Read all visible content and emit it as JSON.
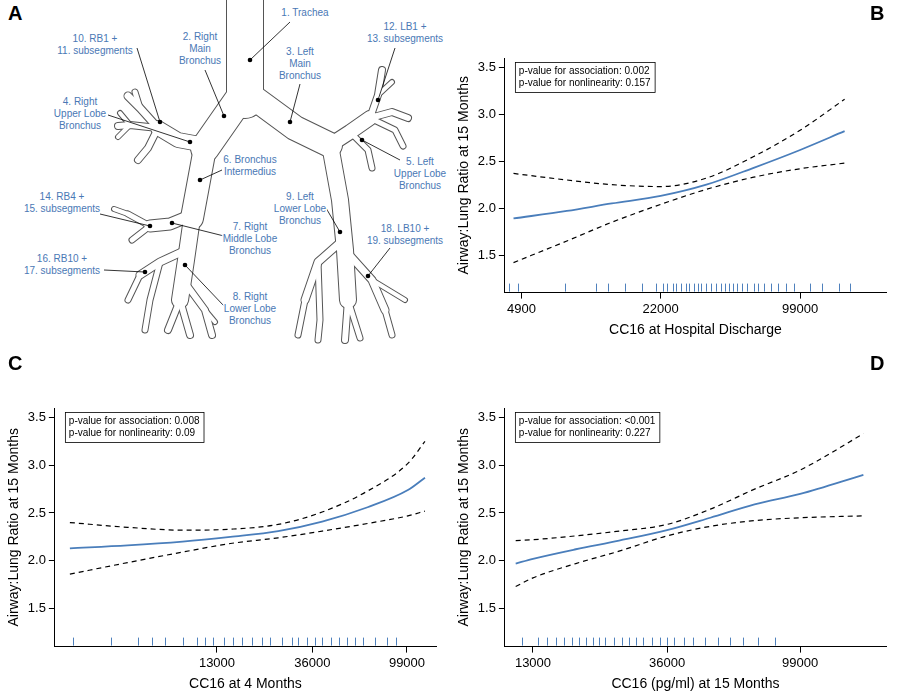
{
  "diagram": {
    "panel": "A",
    "labels": [
      "1. Trachea",
      "2. Right Main Bronchus",
      "3. Left Main Bronchus",
      "4. Right Upper Lobe Bronchus",
      "5. Left Upper Lobe Bronchus",
      "6. Bronchus Intermedius",
      "7. Right Middle Lobe Bronchus",
      "8. Right Lower Lobe Bronchus",
      "9. Left Lower Lobe Bronchus",
      "10. RB1 + 11. subsegments",
      "12. LB1 + 13. subsegments",
      "14. RB4 + 15. subsegments",
      "16. RB10 + 17. subsegments",
      "18. LB10 + 19. subsegments"
    ]
  },
  "chart_data": [
    {
      "type": "line",
      "panel": "B",
      "xlabel": "CC16 at Hospital Discharge",
      "ylabel": "Airway:Lung Ratio at 15 Months",
      "annotations": [
        "p-value for association: 0.002",
        "p-value for nonlinearity: 0.157"
      ],
      "log": "x",
      "grid": false,
      "xlim": [
        4100,
        250000
      ],
      "xticks": [
        4900,
        22000,
        99000
      ],
      "ylim": [
        1.1,
        3.6
      ],
      "yticks": [
        1.5,
        {
          "value": 2,
          "label": "2.0"
        },
        2.5,
        {
          "value": 3,
          "label": "3.0"
        },
        3.5
      ],
      "x": [
        4500,
        8000,
        13000,
        22000,
        36000,
        60000,
        99000,
        160000
      ],
      "series": [
        {
          "color": "#4a7ebb",
          "line_style": "solid",
          "values": [
            1.89,
            1.97,
            2.05,
            2.13,
            2.25,
            2.43,
            2.62,
            2.82
          ]
        },
        {
          "color": "#000000",
          "line_style": "dashed",
          "values": [
            1.42,
            1.65,
            1.85,
            2.04,
            2.2,
            2.33,
            2.42,
            2.48
          ]
        },
        {
          "color": "#000000",
          "line_style": "dashed",
          "values": [
            2.37,
            2.3,
            2.25,
            2.23,
            2.32,
            2.55,
            2.83,
            3.16
          ]
        },
        {
          "type": "rug",
          "color": "#4f81bd",
          "x": [
            4300,
            4700,
            7800,
            11000,
            12500,
            15000,
            18000,
            21000,
            22500,
            23500,
            25000,
            26000,
            27500,
            29000,
            30000,
            31500,
            33000,
            34000,
            36000,
            38000,
            40000,
            42000,
            44000,
            46000,
            48000,
            50000,
            53000,
            56000,
            60000,
            63000,
            67000,
            72000,
            78000,
            85000,
            93000,
            110000,
            125000,
            150000,
            170000
          ]
        }
      ]
    },
    {
      "type": "line",
      "panel": "C",
      "xlabel": "CC16 at 4 Months",
      "ylabel": "Airway:Lung Ratio at 15 Months",
      "annotations": [
        "p-value for association: 0.008",
        "p-value for nonlinearity: 0.09"
      ],
      "log": "x",
      "grid": false,
      "xlim": [
        2300,
        135000
      ],
      "xticks": [
        13000,
        36000,
        99000
      ],
      "ylim": [
        1.1,
        3.6
      ],
      "yticks": [
        1.5,
        {
          "value": 2,
          "label": "2.0"
        },
        2.5,
        {
          "value": 3,
          "label": "3.0"
        },
        3.5
      ],
      "x": [
        2700,
        5000,
        9000,
        15000,
        25000,
        40000,
        65000,
        100000,
        120000
      ],
      "series": [
        {
          "color": "#4a7ebb",
          "line_style": "solid",
          "values": [
            2.13,
            2.16,
            2.2,
            2.25,
            2.31,
            2.41,
            2.56,
            2.74,
            2.87
          ]
        },
        {
          "color": "#000000",
          "line_style": "dashed",
          "values": [
            1.86,
            1.98,
            2.09,
            2.18,
            2.24,
            2.31,
            2.39,
            2.47,
            2.52
          ]
        },
        {
          "color": "#000000",
          "line_style": "dashed",
          "values": [
            2.4,
            2.35,
            2.32,
            2.33,
            2.38,
            2.51,
            2.73,
            3.02,
            3.25
          ]
        },
        {
          "type": "rug",
          "color": "#4f81bd",
          "x": [
            2800,
            4200,
            5600,
            6500,
            7500,
            9000,
            10500,
            11500,
            12500,
            14000,
            15500,
            17000,
            19000,
            21000,
            23000,
            26000,
            29000,
            31000,
            34000,
            37000,
            40000,
            44000,
            48000,
            52000,
            57000,
            62000,
            70000,
            80000,
            88000
          ]
        }
      ]
    },
    {
      "type": "line",
      "panel": "D",
      "xlabel": "CC16 (pg/ml) at 15 Months",
      "ylabel": "Airway:Lung Ratio at 15 Months",
      "annotations": [
        "p-value for association: <0.001",
        "p-value for nonlinearity: 0.227"
      ],
      "log": "x",
      "grid": false,
      "xlim": [
        10500,
        190000
      ],
      "xticks": [
        13000,
        36000,
        99000
      ],
      "ylim": [
        1.1,
        3.6
      ],
      "yticks": [
        1.5,
        {
          "value": 2,
          "label": "2.0"
        },
        2.5,
        {
          "value": 3,
          "label": "3.0"
        },
        3.5
      ],
      "x": [
        11400,
        13000,
        18000,
        25000,
        36000,
        50000,
        70000,
        99000,
        160000
      ],
      "series": [
        {
          "color": "#4a7ebb",
          "line_style": "solid",
          "values": [
            1.97,
            2.02,
            2.12,
            2.21,
            2.32,
            2.45,
            2.59,
            2.7,
            2.9
          ]
        },
        {
          "color": "#000000",
          "line_style": "dashed",
          "values": [
            1.73,
            1.82,
            1.97,
            2.1,
            2.26,
            2.36,
            2.42,
            2.45,
            2.47
          ]
        },
        {
          "color": "#000000",
          "line_style": "dashed",
          "values": [
            2.21,
            2.22,
            2.26,
            2.31,
            2.38,
            2.54,
            2.75,
            2.95,
            3.33
          ]
        },
        {
          "type": "rug",
          "color": "#4f81bd",
          "x": [
            12000,
            13500,
            14500,
            15500,
            16500,
            17500,
            18500,
            19500,
            20500,
            21500,
            22500,
            24000,
            25500,
            27000,
            28500,
            30000,
            32000,
            34000,
            36000,
            38000,
            41000,
            44000,
            48000,
            53000,
            58000,
            64000,
            72000,
            82000
          ]
        }
      ]
    }
  ]
}
